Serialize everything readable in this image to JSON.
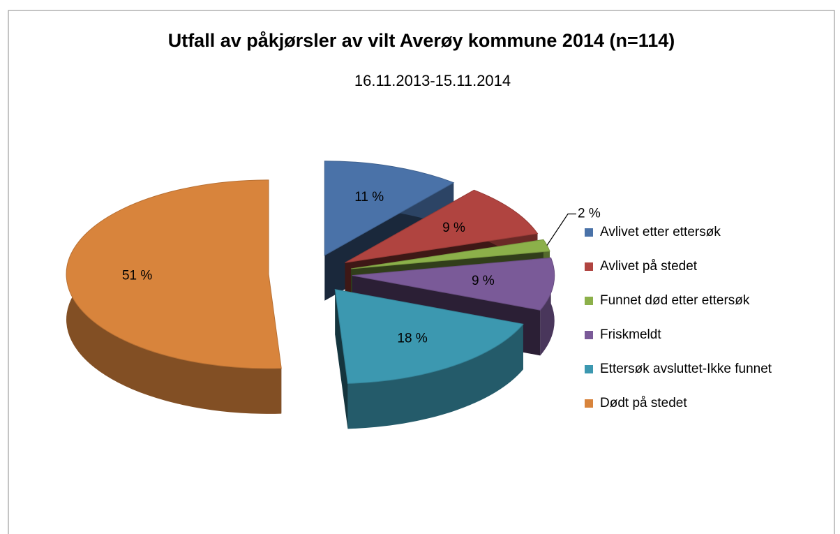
{
  "chart_data": {
    "type": "pie",
    "title": "Utfall av påkjørsler av vilt Averøy kommune 2014 (n=114)",
    "subtitle": "16.11.2013-15.11.2014",
    "categories": [
      "Avlivet etter ettersøk",
      "Avlivet på stedet",
      "Funnet død etter ettersøk",
      "Friskmeldt",
      "Ettersøk avsluttet-Ikke funnet",
      "Dødt på stedet"
    ],
    "values": [
      11,
      9,
      2,
      9,
      18,
      51
    ],
    "value_labels": [
      "11 %",
      "9 %",
      "2 %",
      "9 %",
      "18 %",
      "51 %"
    ],
    "colors": [
      "#4a72a8",
      "#b04440",
      "#8cb04a",
      "#7a5a98",
      "#3c98b0",
      "#d8843c"
    ],
    "legend": "right"
  }
}
